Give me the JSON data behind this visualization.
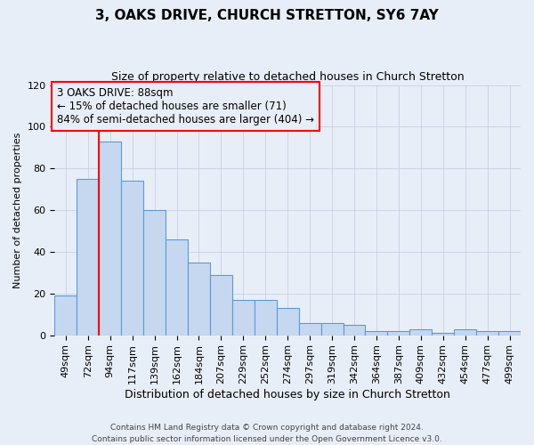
{
  "title": "3, OAKS DRIVE, CHURCH STRETTON, SY6 7AY",
  "subtitle": "Size of property relative to detached houses in Church Stretton",
  "xlabel": "Distribution of detached houses by size in Church Stretton",
  "ylabel": "Number of detached properties",
  "categories": [
    "49sqm",
    "72sqm",
    "94sqm",
    "117sqm",
    "139sqm",
    "162sqm",
    "184sqm",
    "207sqm",
    "229sqm",
    "252sqm",
    "274sqm",
    "297sqm",
    "319sqm",
    "342sqm",
    "364sqm",
    "387sqm",
    "409sqm",
    "432sqm",
    "454sqm",
    "477sqm",
    "499sqm"
  ],
  "values": [
    19,
    75,
    93,
    74,
    60,
    46,
    35,
    29,
    17,
    17,
    13,
    6,
    6,
    5,
    2,
    2,
    3,
    1,
    3,
    2,
    2
  ],
  "bar_color": "#c5d8f0",
  "bar_edge_color": "#5b9bd5",
  "ylim": [
    0,
    120
  ],
  "yticks": [
    0,
    20,
    40,
    60,
    80,
    100,
    120
  ],
  "red_line_x": 1.5,
  "annotation_text": "3 OAKS DRIVE: 88sqm\n← 15% of detached houses are smaller (71)\n84% of semi-detached houses are larger (404) →",
  "footer_line1": "Contains HM Land Registry data © Crown copyright and database right 2024.",
  "footer_line2": "Contains public sector information licensed under the Open Government Licence v3.0.",
  "background_color": "#e8eef8",
  "title_fontsize": 11,
  "subtitle_fontsize": 9,
  "xlabel_fontsize": 9,
  "ylabel_fontsize": 8,
  "tick_fontsize": 8,
  "annot_fontsize": 8.5,
  "footer_fontsize": 6.5
}
